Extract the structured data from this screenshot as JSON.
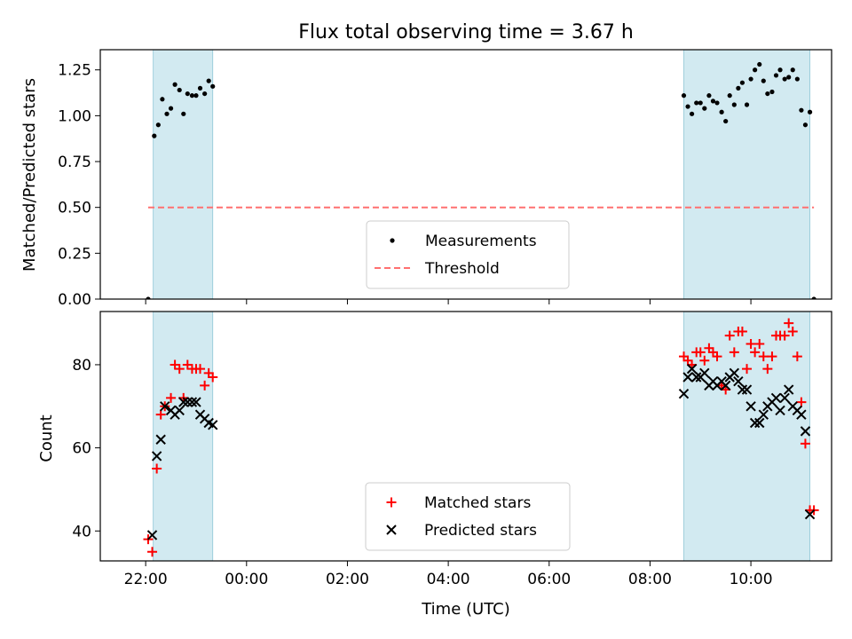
{
  "chart_data": {
    "type": "scatter",
    "title": "Flux total observing time = 3.67 h",
    "xlabel": "Time (UTC)",
    "x_ticks": [
      "22:00",
      "00:00",
      "02:00",
      "04:00",
      "06:00",
      "08:00",
      "10:00"
    ],
    "x_tick_hours": [
      22,
      24,
      26,
      28,
      30,
      32,
      34
    ],
    "xlim_hours": [
      21.1,
      35.6
    ],
    "shaded_windows_hours": [
      [
        22.15,
        23.33
      ],
      [
        32.67,
        35.17
      ]
    ],
    "shade_color": "#add8e6",
    "panels": [
      {
        "ylabel": "Matched/Predicted stars",
        "ylim": [
          0,
          1.36
        ],
        "y_ticks": [
          "0.00",
          "0.25",
          "0.50",
          "0.75",
          "1.00",
          "1.25"
        ],
        "y_tick_values": [
          0,
          0.25,
          0.5,
          0.75,
          1.0,
          1.25
        ],
        "threshold": {
          "value": 0.5,
          "x_range_hours": [
            22.05,
            35.25
          ],
          "color": "#ff7070"
        },
        "legend": {
          "position": "lower center",
          "entries": [
            "Measurements",
            "Threshold"
          ]
        },
        "series": [
          {
            "name": "Measurements",
            "marker": "dot",
            "color": "#000000",
            "points": [
              [
                22.05,
                0.0
              ],
              [
                22.17,
                0.89
              ],
              [
                22.25,
                0.95
              ],
              [
                22.33,
                1.09
              ],
              [
                22.42,
                1.01
              ],
              [
                22.5,
                1.04
              ],
              [
                22.58,
                1.17
              ],
              [
                22.67,
                1.14
              ],
              [
                22.75,
                1.01
              ],
              [
                22.83,
                1.12
              ],
              [
                22.92,
                1.11
              ],
              [
                23.0,
                1.11
              ],
              [
                23.08,
                1.15
              ],
              [
                23.17,
                1.12
              ],
              [
                23.25,
                1.19
              ],
              [
                23.33,
                1.16
              ],
              [
                32.67,
                1.11
              ],
              [
                32.75,
                1.05
              ],
              [
                32.83,
                1.01
              ],
              [
                32.92,
                1.07
              ],
              [
                33.0,
                1.07
              ],
              [
                33.08,
                1.04
              ],
              [
                33.17,
                1.11
              ],
              [
                33.25,
                1.08
              ],
              [
                33.33,
                1.07
              ],
              [
                33.42,
                1.02
              ],
              [
                33.5,
                0.97
              ],
              [
                33.58,
                1.11
              ],
              [
                33.67,
                1.06
              ],
              [
                33.75,
                1.15
              ],
              [
                33.83,
                1.18
              ],
              [
                33.92,
                1.06
              ],
              [
                34.0,
                1.2
              ],
              [
                34.08,
                1.25
              ],
              [
                34.17,
                1.28
              ],
              [
                34.25,
                1.19
              ],
              [
                34.33,
                1.12
              ],
              [
                34.42,
                1.13
              ],
              [
                34.5,
                1.22
              ],
              [
                34.58,
                1.25
              ],
              [
                34.67,
                1.2
              ],
              [
                34.75,
                1.21
              ],
              [
                34.83,
                1.25
              ],
              [
                34.92,
                1.2
              ],
              [
                35.0,
                1.03
              ],
              [
                35.08,
                0.95
              ],
              [
                35.17,
                1.02
              ],
              [
                35.25,
                0.0
              ]
            ]
          }
        ]
      },
      {
        "ylabel": "Count",
        "ylim": [
          32.8,
          92.8
        ],
        "y_ticks": [
          "40",
          "60",
          "80"
        ],
        "y_tick_values": [
          40,
          60,
          80
        ],
        "legend": {
          "position": "lower center",
          "entries": [
            "Matched stars",
            "Predicted stars"
          ]
        },
        "series": [
          {
            "name": "Matched stars",
            "marker": "plus",
            "color": "#ff0000",
            "points": [
              [
                22.05,
                38
              ],
              [
                22.13,
                35
              ],
              [
                22.22,
                55
              ],
              [
                22.3,
                68
              ],
              [
                22.38,
                70
              ],
              [
                22.5,
                72
              ],
              [
                22.58,
                80
              ],
              [
                22.67,
                79
              ],
              [
                22.75,
                72
              ],
              [
                22.83,
                80
              ],
              [
                22.92,
                79
              ],
              [
                23.0,
                79
              ],
              [
                23.08,
                79
              ],
              [
                23.17,
                75
              ],
              [
                23.25,
                78
              ],
              [
                23.33,
                77
              ],
              [
                32.67,
                82
              ],
              [
                32.75,
                81
              ],
              [
                32.83,
                80
              ],
              [
                32.92,
                83
              ],
              [
                33.0,
                83
              ],
              [
                33.08,
                81
              ],
              [
                33.17,
                84
              ],
              [
                33.25,
                83
              ],
              [
                33.33,
                82
              ],
              [
                33.42,
                75
              ],
              [
                33.5,
                74
              ],
              [
                33.58,
                87
              ],
              [
                33.67,
                83
              ],
              [
                33.75,
                88
              ],
              [
                33.83,
                88
              ],
              [
                33.92,
                79
              ],
              [
                34.0,
                85
              ],
              [
                34.08,
                83
              ],
              [
                34.17,
                85
              ],
              [
                34.25,
                82
              ],
              [
                34.33,
                79
              ],
              [
                34.42,
                82
              ],
              [
                34.5,
                87
              ],
              [
                34.58,
                87
              ],
              [
                34.67,
                87
              ],
              [
                34.75,
                90
              ],
              [
                34.83,
                88
              ],
              [
                34.92,
                82
              ],
              [
                35.0,
                71
              ],
              [
                35.08,
                61
              ],
              [
                35.17,
                45
              ],
              [
                35.25,
                45
              ]
            ]
          },
          {
            "name": "Predicted stars",
            "marker": "x",
            "color": "#000000",
            "points": [
              [
                22.13,
                39
              ],
              [
                22.22,
                58
              ],
              [
                22.3,
                62
              ],
              [
                22.38,
                70
              ],
              [
                22.5,
                69
              ],
              [
                22.58,
                68
              ],
              [
                22.67,
                69
              ],
              [
                22.75,
                71
              ],
              [
                22.83,
                71
              ],
              [
                22.92,
                71
              ],
              [
                23.0,
                71
              ],
              [
                23.08,
                68
              ],
              [
                23.17,
                67
              ],
              [
                23.25,
                66
              ],
              [
                23.33,
                65.5
              ],
              [
                32.67,
                73
              ],
              [
                32.75,
                77
              ],
              [
                32.83,
                79
              ],
              [
                32.92,
                77
              ],
              [
                33.0,
                77
              ],
              [
                33.08,
                78
              ],
              [
                33.17,
                75
              ],
              [
                33.25,
                76
              ],
              [
                33.33,
                75
              ],
              [
                33.42,
                76
              ],
              [
                33.5,
                75
              ],
              [
                33.58,
                77
              ],
              [
                33.67,
                78
              ],
              [
                33.75,
                76
              ],
              [
                33.83,
                74
              ],
              [
                33.92,
                74
              ],
              [
                34.0,
                70
              ],
              [
                34.08,
                66
              ],
              [
                34.17,
                66
              ],
              [
                34.25,
                68
              ],
              [
                34.33,
                70
              ],
              [
                34.42,
                71
              ],
              [
                34.5,
                72
              ],
              [
                34.58,
                69
              ],
              [
                34.67,
                72
              ],
              [
                34.75,
                74
              ],
              [
                34.83,
                70
              ],
              [
                34.92,
                69
              ],
              [
                35.0,
                68
              ],
              [
                35.08,
                64
              ],
              [
                35.17,
                44
              ]
            ]
          }
        ]
      }
    ]
  }
}
